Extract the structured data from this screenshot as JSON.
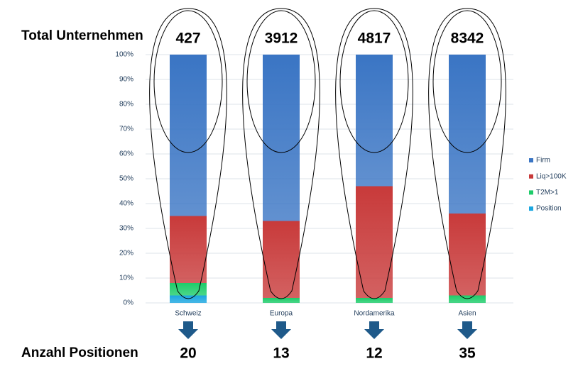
{
  "chart_data": {
    "type": "stacked-bar",
    "categories": [
      "Schweiz",
      "Europa",
      "Nordamerika",
      "Asien"
    ],
    "series": [
      {
        "name": "Position",
        "color": "#1ba7e0",
        "values": [
          3,
          0,
          0,
          0
        ]
      },
      {
        "name": "T2M>1",
        "color": "#1ecc6a",
        "values": [
          5,
          2,
          2,
          3
        ]
      },
      {
        "name": "Liq>100K",
        "color": "#c83a3a",
        "values": [
          27,
          31,
          45,
          33
        ]
      },
      {
        "name": "Firm",
        "color": "#3a75c4",
        "values": [
          65,
          67,
          53,
          64
        ]
      }
    ],
    "ylim": [
      0,
      100
    ],
    "yticks": [
      {
        "value": 0,
        "label": "0%"
      },
      {
        "value": 10,
        "label": "10%"
      },
      {
        "value": 20,
        "label": "20%"
      },
      {
        "value": 30,
        "label": "30%"
      },
      {
        "value": 40,
        "label": "40%"
      },
      {
        "value": 50,
        "label": "50%"
      },
      {
        "value": 60,
        "label": "60%"
      },
      {
        "value": 70,
        "label": "70%"
      },
      {
        "value": 80,
        "label": "80%"
      },
      {
        "value": 90,
        "label": "90%"
      },
      {
        "value": 100,
        "label": "100%"
      }
    ],
    "grid": true,
    "annotations": {
      "top_label": "Total Unternehmen",
      "top_values": [
        427,
        3912,
        4817,
        8342
      ],
      "bottom_label": "Anzahl Positionen",
      "bottom_values": [
        20,
        13,
        12,
        35
      ]
    }
  }
}
